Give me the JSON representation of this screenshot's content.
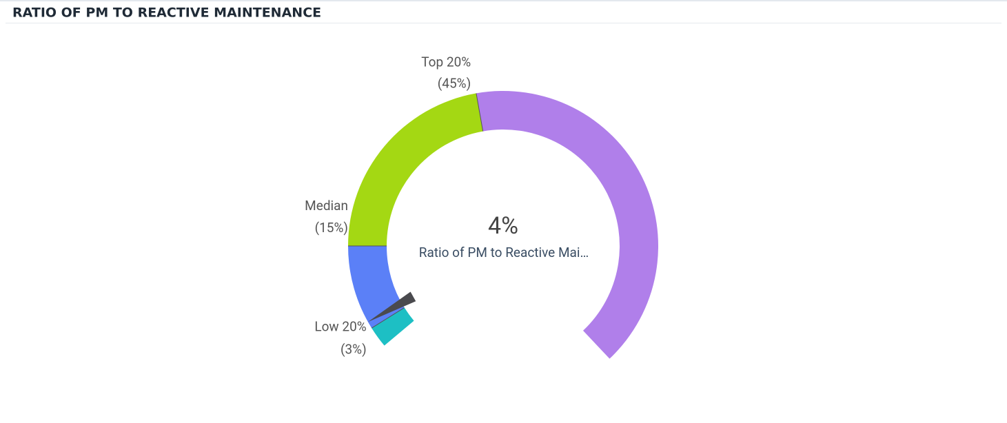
{
  "chart_data": {
    "type": "gauge",
    "title": "RATIO OF PM TO REACTIVE MAINTENANCE",
    "value": 4,
    "value_label": "4%",
    "subtitle": "Ratio of PM to Reactive Mai…",
    "ylim": [
      0,
      100
    ],
    "thresholds": [
      {
        "name": "Low 20%",
        "value": 3,
        "label": "(3%)"
      },
      {
        "name": "Median",
        "value": 15,
        "label": "(15%)"
      },
      {
        "name": "Top 20%",
        "value": 45,
        "label": "(45%)"
      }
    ],
    "segment_colors": [
      "#1dbfc4",
      "#5b80f7",
      "#a4d813",
      "#b07fea"
    ],
    "needle_color": "#4a4a4e"
  }
}
